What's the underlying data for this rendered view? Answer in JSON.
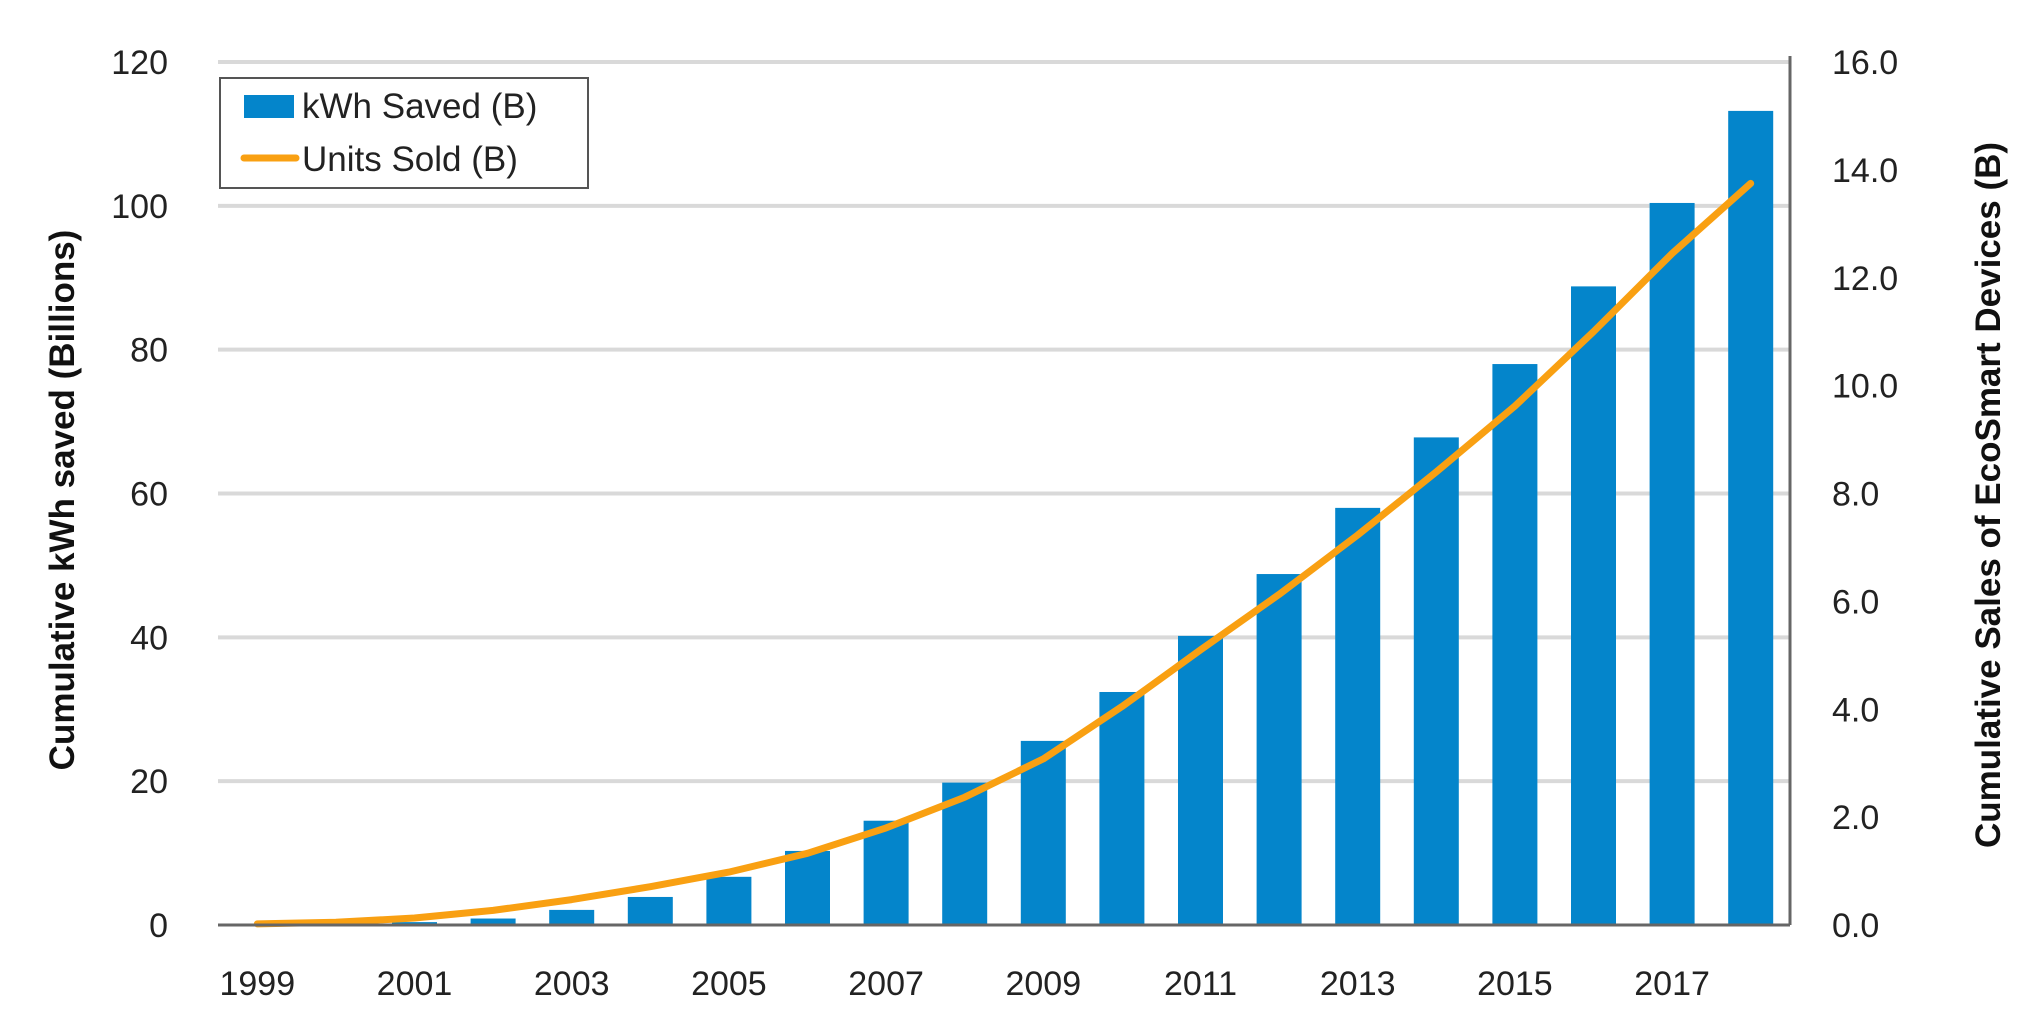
{
  "chart_data": {
    "type": "bar",
    "title": "",
    "years": [
      1999,
      2000,
      2001,
      2002,
      2003,
      2004,
      2005,
      2006,
      2007,
      2008,
      2009,
      2010,
      2011,
      2012,
      2013,
      2014,
      2015,
      2016,
      2017,
      2018
    ],
    "x_tick_labels": [
      "1999",
      "2001",
      "2003",
      "2005",
      "2007",
      "2009",
      "2011",
      "2013",
      "2015",
      "2017"
    ],
    "ylabel": "Cumulative kWh saved (Billions)",
    "ylabel_right": "Cumulative Sales of EcoSmart Devices (B)",
    "ylim": [
      0,
      120
    ],
    "ylim_right": [
      0,
      16
    ],
    "y_ticks": [
      "0",
      "20",
      "40",
      "60",
      "80",
      "100",
      "120"
    ],
    "y_ticks_right": [
      "0.0",
      "2.0",
      "4.0",
      "6.0",
      "8.0",
      "10.0",
      "12.0",
      "14.0",
      "16.0"
    ],
    "grid": true,
    "legend_position": "top-left",
    "series": [
      {
        "name": "kWh Saved (B)",
        "type": "bar",
        "axis": "left",
        "color": "#0485CB",
        "values": [
          0.1,
          0.2,
          0.4,
          0.9,
          2.1,
          3.9,
          6.7,
          10.3,
          14.5,
          19.8,
          25.6,
          32.4,
          40.2,
          48.8,
          58.0,
          67.8,
          78.0,
          88.8,
          100.4,
          113.2
        ]
      },
      {
        "name": "Units Sold (B)",
        "type": "line",
        "axis": "right",
        "color": "#F9A012",
        "values": [
          0.02,
          0.05,
          0.13,
          0.27,
          0.47,
          0.71,
          0.98,
          1.33,
          1.8,
          2.37,
          3.08,
          4.05,
          5.1,
          6.13,
          7.23,
          8.4,
          9.62,
          11.0,
          12.45,
          13.75
        ]
      }
    ]
  }
}
